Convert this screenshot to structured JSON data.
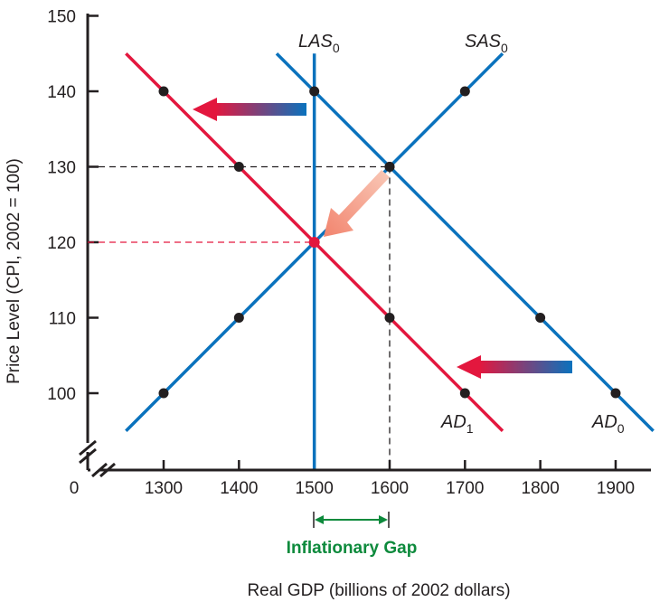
{
  "chart_data": {
    "type": "line",
    "title": "",
    "xlabel": "Real GDP (billions of 2002 dollars)",
    "ylabel": "Price Level (CPI, 2002 = 100)",
    "origin_label": "0",
    "xlim": [
      1200,
      1950
    ],
    "ylim": [
      90,
      150
    ],
    "x_ticks": [
      "1300",
      "1400",
      "1500",
      "1600",
      "1700",
      "1800",
      "1900"
    ],
    "y_ticks": [
      "100",
      "110",
      "120",
      "130",
      "140",
      "150"
    ],
    "highlight_x_tick": "1500",
    "highlight_y_tick": "120",
    "colors": {
      "blue": "#0a72bd",
      "red": "#e3173e",
      "green": "#0d8a3c",
      "dark": "#231f20",
      "highlight_text": "#e3173e"
    },
    "series": [
      {
        "name": "AD",
        "subscript": "0",
        "color": "#0a72bd",
        "line": [
          [
            1450,
            145
          ],
          [
            1950,
            95
          ]
        ],
        "points": [
          [
            1500,
            140
          ],
          [
            1600,
            130
          ],
          [
            1800,
            110
          ],
          [
            1900,
            100
          ]
        ]
      },
      {
        "name": "AD",
        "subscript": "1",
        "color": "#e3173e",
        "line": [
          [
            1250,
            145
          ],
          [
            1750,
            95
          ]
        ],
        "points": [
          [
            1300,
            140
          ],
          [
            1400,
            130
          ],
          [
            1500,
            120
          ],
          [
            1600,
            110
          ],
          [
            1700,
            100
          ]
        ]
      },
      {
        "name": "SAS",
        "subscript": "0",
        "color": "#0a72bd",
        "line": [
          [
            1250,
            95
          ],
          [
            1750,
            145
          ]
        ],
        "points": [
          [
            1300,
            100
          ],
          [
            1400,
            110
          ],
          [
            1500,
            120
          ],
          [
            1600,
            130
          ],
          [
            1700,
            140
          ]
        ]
      },
      {
        "name": "LAS",
        "subscript": "0",
        "color": "#0a72bd",
        "line": [
          [
            1500,
            90
          ],
          [
            1500,
            145
          ]
        ],
        "points": []
      }
    ],
    "reference_lines": [
      {
        "kind": "horizontal",
        "y": 130,
        "to_x": 1600,
        "color": "#231f20"
      },
      {
        "kind": "vertical",
        "x": 1600,
        "to_y": 130,
        "color": "#231f20"
      },
      {
        "kind": "horizontal",
        "y": 120,
        "to_x": 1500,
        "color": "#e3173e"
      }
    ],
    "new_equilibrium": [
      1500,
      120
    ],
    "gap": {
      "label": "Inflationary Gap",
      "from_x": 1500,
      "to_x": 1600
    },
    "shift_arrows": [
      {
        "from": [
          1490,
          139
        ],
        "to": [
          1350,
          139
        ],
        "description": "AD shift left (upper)"
      },
      {
        "from": [
          1840,
          103.5
        ],
        "to": [
          1700,
          103.5
        ],
        "description": "AD shift left (lower)"
      },
      {
        "from": [
          1600,
          129
        ],
        "to": [
          1535,
          121.5
        ],
        "description": "movement along SAS"
      }
    ]
  }
}
